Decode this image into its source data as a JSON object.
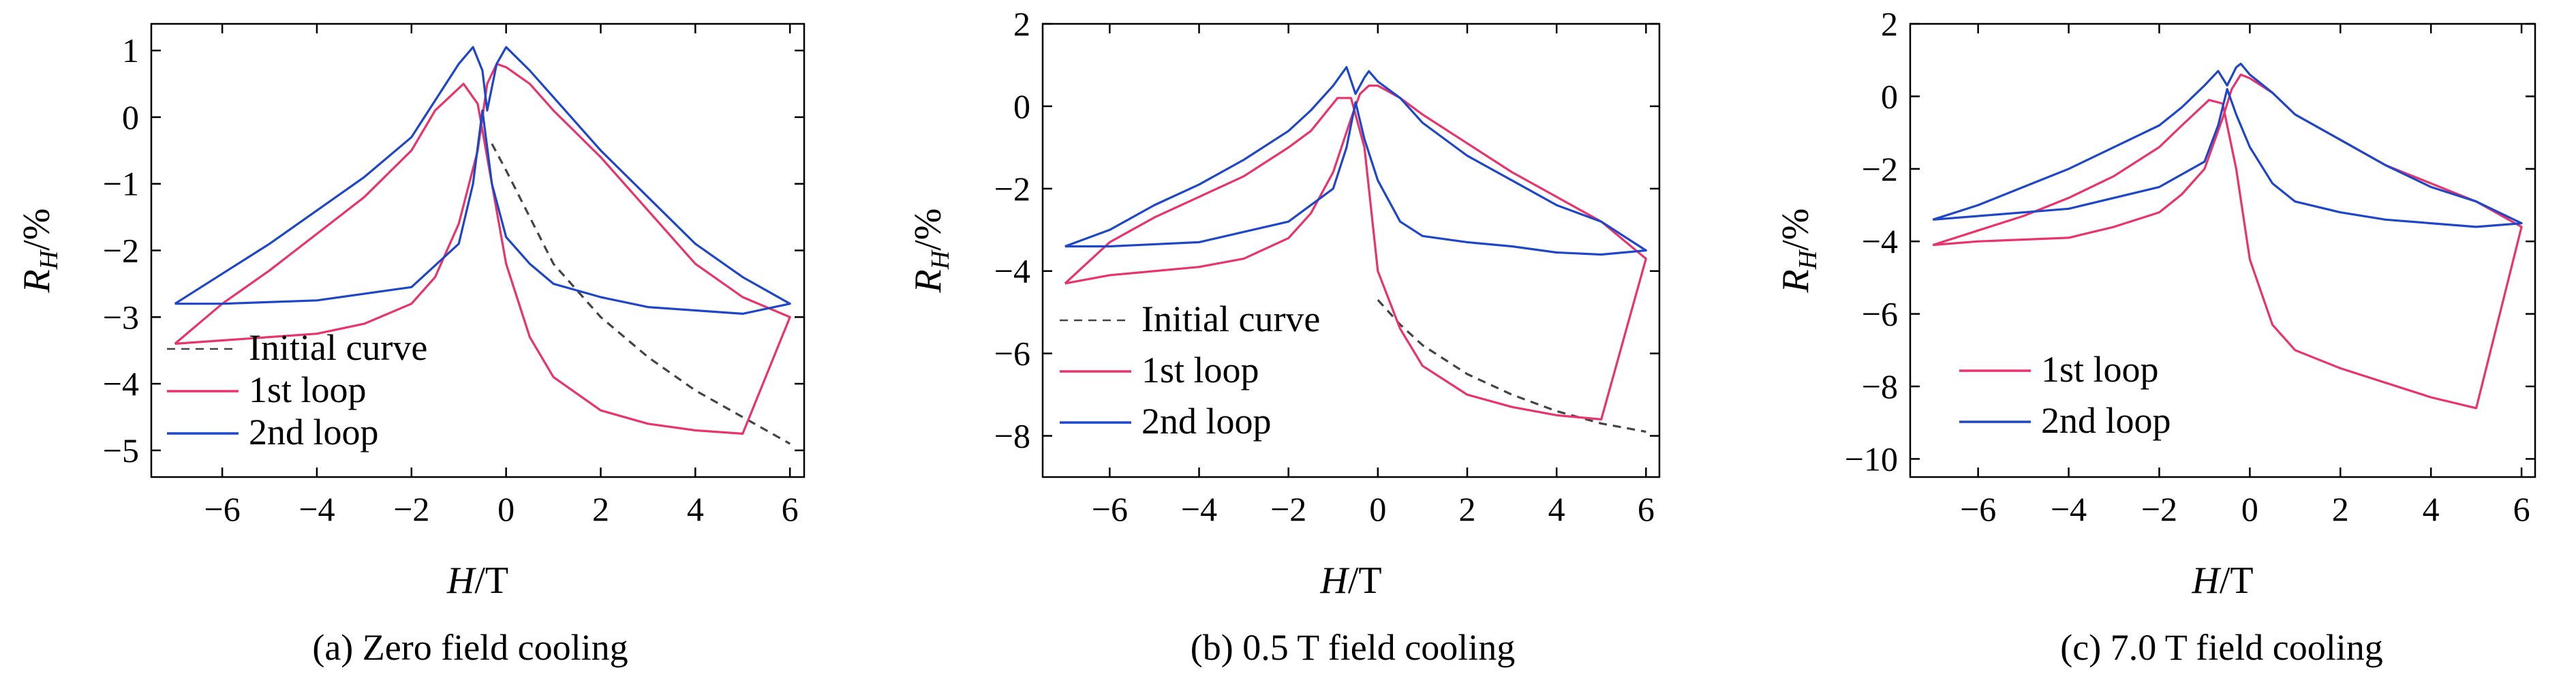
{
  "chart_data": [
    {
      "type": "line",
      "caption": "(a) Zero field cooling",
      "xlabel": "H/T",
      "ylabel": "RH/%",
      "xlim": [
        -7.5,
        6.3
      ],
      "ylim": [
        -5.4,
        1.4
      ],
      "xticks": [
        -6,
        -4,
        -2,
        0,
        2,
        4,
        6
      ],
      "yticks": [
        -5,
        -4,
        -3,
        -2,
        -1,
        0,
        1
      ],
      "legend_items": [
        "Initial curve",
        "1st loop",
        "2nd loop"
      ],
      "series": [
        {
          "name": "Initial curve",
          "color": "#444444",
          "dash": true,
          "points": [
            [
              -0.3,
              -0.4
            ],
            [
              0,
              -0.8
            ],
            [
              0.5,
              -1.5
            ],
            [
              1,
              -2.2
            ],
            [
              2,
              -3.0
            ],
            [
              3,
              -3.6
            ],
            [
              4,
              -4.1
            ],
            [
              5,
              -4.5
            ],
            [
              6,
              -4.9
            ]
          ]
        },
        {
          "name": "1st loop",
          "color": "#e8336b",
          "points": [
            [
              -7,
              -3.4
            ],
            [
              -6,
              -3.35
            ],
            [
              -4,
              -3.25
            ],
            [
              -3,
              -3.1
            ],
            [
              -2,
              -2.8
            ],
            [
              -1.5,
              -2.4
            ],
            [
              -1.0,
              -1.6
            ],
            [
              -0.6,
              -0.5
            ],
            [
              -0.4,
              0.5
            ],
            [
              -0.2,
              0.8
            ],
            [
              0,
              0.75
            ],
            [
              0.5,
              0.5
            ],
            [
              1,
              0.1
            ],
            [
              2,
              -0.6
            ],
            [
              3,
              -1.4
            ],
            [
              4,
              -2.2
            ],
            [
              5,
              -2.7
            ],
            [
              6,
              -3.0
            ],
            [
              5,
              -4.75
            ],
            [
              4,
              -4.7
            ],
            [
              3,
              -4.6
            ],
            [
              2,
              -4.4
            ],
            [
              1,
              -3.9
            ],
            [
              0.5,
              -3.3
            ],
            [
              0,
              -2.2
            ],
            [
              -0.3,
              -1.0
            ],
            [
              -0.6,
              0.2
            ],
            [
              -0.9,
              0.5
            ],
            [
              -1.5,
              0.1
            ],
            [
              -2,
              -0.5
            ],
            [
              -3,
              -1.2
            ],
            [
              -4,
              -1.75
            ],
            [
              -5,
              -2.3
            ],
            [
              -6,
              -2.8
            ],
            [
              -7,
              -3.4
            ]
          ]
        },
        {
          "name": "2nd loop",
          "color": "#1e46c8",
          "points": [
            [
              -7,
              -2.8
            ],
            [
              -6,
              -2.35
            ],
            [
              -5,
              -1.9
            ],
            [
              -4,
              -1.4
            ],
            [
              -3,
              -0.9
            ],
            [
              -2,
              -0.3
            ],
            [
              -1.5,
              0.25
            ],
            [
              -1.0,
              0.8
            ],
            [
              -0.7,
              1.05
            ],
            [
              -0.5,
              0.7
            ],
            [
              -0.4,
              0.1
            ],
            [
              -0.2,
              0.8
            ],
            [
              0,
              1.05
            ],
            [
              0.5,
              0.7
            ],
            [
              1,
              0.3
            ],
            [
              2,
              -0.5
            ],
            [
              3,
              -1.2
            ],
            [
              4,
              -1.9
            ],
            [
              5,
              -2.4
            ],
            [
              6,
              -2.8
            ],
            [
              5,
              -2.95
            ],
            [
              4,
              -2.9
            ],
            [
              3,
              -2.85
            ],
            [
              2,
              -2.7
            ],
            [
              1,
              -2.5
            ],
            [
              0.5,
              -2.2
            ],
            [
              0,
              -1.8
            ],
            [
              -0.3,
              -1.0
            ],
            [
              -0.5,
              0.1
            ],
            [
              -0.7,
              -1.0
            ],
            [
              -1.0,
              -1.9
            ],
            [
              -2,
              -2.55
            ],
            [
              -4,
              -2.75
            ],
            [
              -6,
              -2.8
            ],
            [
              -7,
              -2.8
            ]
          ]
        }
      ]
    },
    {
      "type": "line",
      "caption": "(b) 0.5 T field cooling",
      "xlabel": "H/T",
      "ylabel": "RH/%",
      "xlim": [
        -7.5,
        6.3
      ],
      "ylim": [
        -9.0,
        2.0
      ],
      "xticks": [
        -6,
        -4,
        -2,
        0,
        2,
        4,
        6
      ],
      "yticks": [
        -8,
        -6,
        -4,
        -2,
        0,
        2
      ],
      "legend_items": [
        "Initial curve",
        "1st loop",
        "2nd loop"
      ],
      "series": [
        {
          "name": "Initial curve",
          "color": "#444444",
          "dash": true,
          "points": [
            [
              0,
              -4.7
            ],
            [
              0.5,
              -5.3
            ],
            [
              1,
              -5.8
            ],
            [
              2,
              -6.5
            ],
            [
              3,
              -7.0
            ],
            [
              4,
              -7.4
            ],
            [
              5,
              -7.7
            ],
            [
              6,
              -7.9
            ]
          ]
        },
        {
          "name": "1st loop",
          "color": "#e8336b",
          "points": [
            [
              -7,
              -4.3
            ],
            [
              -6,
              -4.1
            ],
            [
              -4,
              -3.9
            ],
            [
              -3,
              -3.7
            ],
            [
              -2,
              -3.2
            ],
            [
              -1.5,
              -2.6
            ],
            [
              -1.0,
              -1.6
            ],
            [
              -0.6,
              -0.3
            ],
            [
              -0.4,
              0.3
            ],
            [
              -0.2,
              0.5
            ],
            [
              0,
              0.5
            ],
            [
              0.5,
              0.2
            ],
            [
              1,
              -0.2
            ],
            [
              2,
              -0.9
            ],
            [
              3,
              -1.6
            ],
            [
              4,
              -2.2
            ],
            [
              5,
              -2.8
            ],
            [
              6,
              -3.7
            ],
            [
              5,
              -7.6
            ],
            [
              4,
              -7.5
            ],
            [
              3,
              -7.3
            ],
            [
              2,
              -7.0
            ],
            [
              1,
              -6.3
            ],
            [
              0.5,
              -5.4
            ],
            [
              0,
              -4.0
            ],
            [
              -0.3,
              -1.0
            ],
            [
              -0.6,
              0.2
            ],
            [
              -0.9,
              0.2
            ],
            [
              -1.5,
              -0.6
            ],
            [
              -2,
              -1.0
            ],
            [
              -3,
              -1.7
            ],
            [
              -4,
              -2.2
            ],
            [
              -5,
              -2.7
            ],
            [
              -6,
              -3.3
            ],
            [
              -7,
              -4.3
            ]
          ]
        },
        {
          "name": "2nd loop",
          "color": "#1e46c8",
          "points": [
            [
              -7,
              -3.4
            ],
            [
              -6,
              -3.0
            ],
            [
              -5,
              -2.4
            ],
            [
              -4,
              -1.9
            ],
            [
              -3,
              -1.3
            ],
            [
              -2,
              -0.6
            ],
            [
              -1.5,
              -0.1
            ],
            [
              -1.0,
              0.5
            ],
            [
              -0.7,
              0.95
            ],
            [
              -0.5,
              0.3
            ],
            [
              -0.3,
              0.7
            ],
            [
              -0.2,
              0.85
            ],
            [
              0,
              0.6
            ],
            [
              0.5,
              0.2
            ],
            [
              1,
              -0.4
            ],
            [
              2,
              -1.2
            ],
            [
              3,
              -1.8
            ],
            [
              4,
              -2.4
            ],
            [
              5,
              -2.8
            ],
            [
              6,
              -3.5
            ],
            [
              5,
              -3.6
            ],
            [
              4,
              -3.55
            ],
            [
              3,
              -3.4
            ],
            [
              2,
              -3.3
            ],
            [
              1,
              -3.15
            ],
            [
              0.5,
              -2.8
            ],
            [
              0,
              -1.8
            ],
            [
              -0.3,
              -0.8
            ],
            [
              -0.5,
              0.1
            ],
            [
              -0.7,
              -1.0
            ],
            [
              -1.0,
              -2.0
            ],
            [
              -2,
              -2.8
            ],
            [
              -4,
              -3.3
            ],
            [
              -6,
              -3.4
            ],
            [
              -7,
              -3.4
            ]
          ]
        }
      ]
    },
    {
      "type": "line",
      "caption": "(c) 7.0 T field cooling",
      "xlabel": "H/T",
      "ylabel": "RH/%",
      "xlim": [
        -7.5,
        6.3
      ],
      "ylim": [
        -10.5,
        2.0
      ],
      "xticks": [
        -6,
        -4,
        -2,
        0,
        2,
        4,
        6
      ],
      "yticks": [
        -10,
        -8,
        -6,
        -4,
        -2,
        0,
        2
      ],
      "legend_items": [
        "1st loop",
        "2nd loop"
      ],
      "series": [
        {
          "name": "1st loop",
          "color": "#e8336b",
          "points": [
            [
              -7,
              -4.1
            ],
            [
              -6,
              -4.0
            ],
            [
              -4,
              -3.9
            ],
            [
              -3,
              -3.6
            ],
            [
              -2,
              -3.2
            ],
            [
              -1.5,
              -2.7
            ],
            [
              -1.0,
              -2.0
            ],
            [
              -0.6,
              -0.6
            ],
            [
              -0.4,
              0.2
            ],
            [
              -0.2,
              0.6
            ],
            [
              0,
              0.5
            ],
            [
              0.5,
              0.1
            ],
            [
              1,
              -0.5
            ],
            [
              2,
              -1.2
            ],
            [
              3,
              -1.9
            ],
            [
              4,
              -2.4
            ],
            [
              5,
              -2.9
            ],
            [
              6,
              -3.6
            ],
            [
              5,
              -8.6
            ],
            [
              4,
              -8.3
            ],
            [
              3,
              -7.9
            ],
            [
              2,
              -7.5
            ],
            [
              1,
              -7.0
            ],
            [
              0.5,
              -6.3
            ],
            [
              0,
              -4.5
            ],
            [
              -0.3,
              -2.0
            ],
            [
              -0.6,
              -0.2
            ],
            [
              -0.9,
              -0.1
            ],
            [
              -1.5,
              -0.8
            ],
            [
              -2,
              -1.4
            ],
            [
              -3,
              -2.2
            ],
            [
              -4,
              -2.8
            ],
            [
              -5,
              -3.3
            ],
            [
              -6,
              -3.7
            ],
            [
              -7,
              -4.1
            ]
          ]
        },
        {
          "name": "2nd loop",
          "color": "#1e46c8",
          "points": [
            [
              -7,
              -3.4
            ],
            [
              -6,
              -3.0
            ],
            [
              -5,
              -2.5
            ],
            [
              -4,
              -2.0
            ],
            [
              -3,
              -1.4
            ],
            [
              -2,
              -0.8
            ],
            [
              -1.5,
              -0.3
            ],
            [
              -1.0,
              0.3
            ],
            [
              -0.7,
              0.7
            ],
            [
              -0.5,
              0.3
            ],
            [
              -0.3,
              0.8
            ],
            [
              -0.2,
              0.9
            ],
            [
              0,
              0.6
            ],
            [
              0.5,
              0.1
            ],
            [
              1,
              -0.5
            ],
            [
              2,
              -1.2
            ],
            [
              3,
              -1.9
            ],
            [
              4,
              -2.5
            ],
            [
              5,
              -2.9
            ],
            [
              6,
              -3.5
            ],
            [
              5,
              -3.6
            ],
            [
              4,
              -3.5
            ],
            [
              3,
              -3.4
            ],
            [
              2,
              -3.2
            ],
            [
              1,
              -2.9
            ],
            [
              0.5,
              -2.4
            ],
            [
              0,
              -1.4
            ],
            [
              -0.3,
              -0.5
            ],
            [
              -0.5,
              0.2
            ],
            [
              -0.7,
              -0.8
            ],
            [
              -1.0,
              -1.8
            ],
            [
              -2,
              -2.5
            ],
            [
              -4,
              -3.1
            ],
            [
              -6,
              -3.3
            ],
            [
              -7,
              -3.4
            ]
          ]
        }
      ]
    }
  ]
}
